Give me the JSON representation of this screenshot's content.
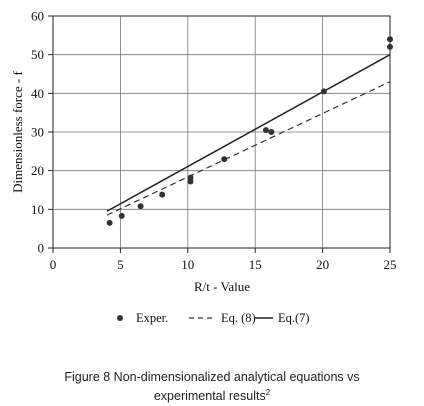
{
  "chart_data": {
    "type": "scatter",
    "title": "",
    "xlabel": "R/t - Value",
    "ylabel": "Dimensionless force - f",
    "xlim": [
      0,
      25
    ],
    "ylim": [
      0,
      60
    ],
    "xticks": [
      0,
      5,
      10,
      15,
      20,
      25
    ],
    "yticks": [
      0,
      10,
      20,
      30,
      40,
      50,
      60
    ],
    "grid": true,
    "legend_placement": "bottom",
    "series": [
      {
        "name": "Exper.",
        "type": "scatter",
        "color": "#333333",
        "x": [
          4.2,
          5.1,
          6.5,
          8.1,
          10.2,
          10.2,
          12.7,
          15.8,
          16.2,
          20.1,
          25.0,
          25.0
        ],
        "y": [
          6.5,
          8.3,
          10.8,
          13.8,
          17.2,
          18.2,
          23.0,
          30.5,
          30.0,
          40.5,
          52.0,
          54.0
        ]
      },
      {
        "name": "Eq. (8)",
        "type": "line",
        "style": "dashed",
        "color": "#333333",
        "x": [
          4,
          25
        ],
        "y": [
          8.5,
          43.0
        ]
      },
      {
        "name": "Eq.(7)",
        "type": "line",
        "style": "solid",
        "color": "#222222",
        "x": [
          4,
          25
        ],
        "y": [
          9.5,
          50.0
        ]
      }
    ]
  },
  "caption": {
    "line1": "Figure 8 Non-dimensionalized analytical equations vs",
    "line2": "experimental results",
    "superscript": "2"
  }
}
